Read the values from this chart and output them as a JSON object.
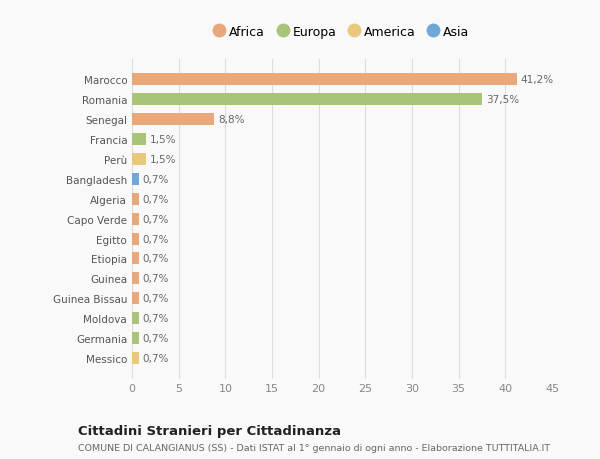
{
  "countries": [
    "Messico",
    "Germania",
    "Moldova",
    "Guinea Bissau",
    "Guinea",
    "Etiopia",
    "Egitto",
    "Capo Verde",
    "Algeria",
    "Bangladesh",
    "Perù",
    "Francia",
    "Senegal",
    "Romania",
    "Marocco"
  ],
  "values": [
    0.7,
    0.7,
    0.7,
    0.7,
    0.7,
    0.7,
    0.7,
    0.7,
    0.7,
    0.7,
    1.5,
    1.5,
    8.8,
    37.5,
    41.2
  ],
  "colors": [
    "#e8c87a",
    "#a8c47a",
    "#a8c47a",
    "#e8a87a",
    "#e8a87a",
    "#e8a87a",
    "#e8a87a",
    "#e8a87a",
    "#e8a87a",
    "#6fa8d8",
    "#e8c87a",
    "#a8c47a",
    "#e8a87a",
    "#a8c47a",
    "#e8a87a"
  ],
  "labels": [
    "0,7%",
    "0,7%",
    "0,7%",
    "0,7%",
    "0,7%",
    "0,7%",
    "0,7%",
    "0,7%",
    "0,7%",
    "0,7%",
    "1,5%",
    "1,5%",
    "8,8%",
    "37,5%",
    "41,2%"
  ],
  "legend_names": [
    "Africa",
    "Europa",
    "America",
    "Asia"
  ],
  "legend_colors": [
    "#e8a87a",
    "#a8c47a",
    "#e8c87a",
    "#6fa8d8"
  ],
  "title": "Cittadini Stranieri per Cittadinanza",
  "subtitle": "COMUNE DI CALANGIANUS (SS) - Dati ISTAT al 1° gennaio di ogni anno - Elaborazione TUTTITALIA.IT",
  "xlim": [
    0,
    45
  ],
  "xticks": [
    0,
    5,
    10,
    15,
    20,
    25,
    30,
    35,
    40,
    45
  ],
  "background_color": "#f9f9f9",
  "grid_color": "#dddddd",
  "bar_height": 0.6
}
